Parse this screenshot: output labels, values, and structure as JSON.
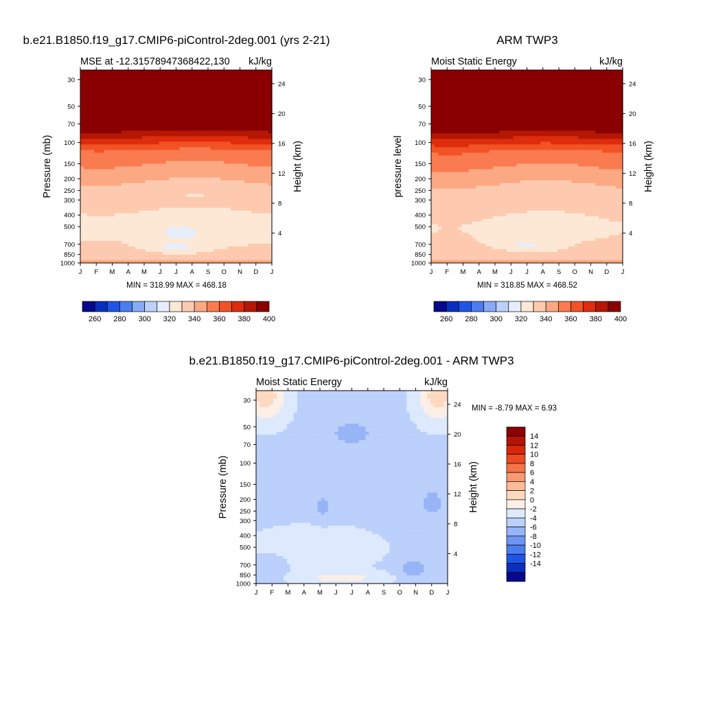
{
  "palette": {
    "absolute": [
      "#08088c",
      "#0a2fbe",
      "#1f55e6",
      "#4b7cf0",
      "#88aaf5",
      "#bbd0fa",
      "#e6eefc",
      "#fde8d6",
      "#fdcab0",
      "#fca882",
      "#fa7b50",
      "#f25325",
      "#de2c0c",
      "#b41704",
      "#8a0000"
    ],
    "difference": [
      "#08088c",
      "#0a2fbe",
      "#1f55e6",
      "#4b7cf0",
      "#6e95f2",
      "#96b4f6",
      "#bbd0fa",
      "#dde9fc",
      "#fbefe6",
      "#fdd9bf",
      "#fcbc98",
      "#fa9870",
      "#f67249",
      "#ec4b22",
      "#d9260a",
      "#b41404",
      "#8c0000"
    ]
  },
  "chart_data": [
    {
      "type": "heatmap",
      "title": "b.e21.B1850.f19_g17.CMIP6-piControl-2deg.001 (yrs 2-21)",
      "left_subtitle": "MSE at -12.31578947368422,130",
      "right_subtitle": "kJ/kg",
      "ylabel": "Pressure (mb)",
      "ylabel_right": "Height (km)",
      "stats": "MIN = 318.99 MAX = 468.18",
      "x_ticks": [
        "J",
        "F",
        "M",
        "A",
        "M",
        "J",
        "J",
        "A",
        "S",
        "O",
        "N",
        "D",
        "J"
      ],
      "y_ticks": [
        30,
        50,
        70,
        100,
        150,
        200,
        250,
        300,
        400,
        500,
        700,
        850,
        1000
      ],
      "y_right_ticks": [
        4,
        8,
        12,
        16,
        20,
        24
      ],
      "colorbar_levels": [
        260,
        270,
        280,
        290,
        300,
        310,
        320,
        330,
        340,
        350,
        360,
        370,
        380,
        390,
        400
      ],
      "colorbar_labels": [
        "260",
        "280",
        "300",
        "320",
        "340",
        "360",
        "380",
        "400"
      ],
      "y_scale": "log",
      "ylim": [
        1000,
        25
      ]
    },
    {
      "type": "heatmap",
      "title": "ARM TWP3",
      "left_subtitle": "Moist Static Energy",
      "right_subtitle": "kJ/kg",
      "ylabel": "pressure level",
      "ylabel_right": "Height (km)",
      "stats": "MIN = 318.85 MAX = 468.52",
      "x_ticks": [
        "J",
        "F",
        "M",
        "A",
        "M",
        "J",
        "J",
        "A",
        "S",
        "O",
        "N",
        "D",
        "J"
      ],
      "y_ticks": [
        30,
        50,
        70,
        100,
        150,
        200,
        250,
        300,
        400,
        500,
        700,
        850,
        1000
      ],
      "y_right_ticks": [
        4,
        8,
        12,
        16,
        20,
        24
      ],
      "colorbar_levels": [
        260,
        270,
        280,
        290,
        300,
        310,
        320,
        330,
        340,
        350,
        360,
        370,
        380,
        390,
        400
      ],
      "colorbar_labels": [
        "260",
        "280",
        "300",
        "320",
        "340",
        "360",
        "380",
        "400"
      ],
      "y_scale": "log",
      "ylim": [
        1000,
        25
      ]
    },
    {
      "type": "heatmap",
      "title": "b.e21.B1850.f19_g17.CMIP6-piControl-2deg.001 - ARM TWP3",
      "left_subtitle": "Moist Static Energy",
      "right_subtitle": "kJ/kg",
      "ylabel": "Pressure (mb)",
      "ylabel_right": "Height (km)",
      "stats": "MIN =  -8.79 MAX =   6.93",
      "x_ticks": [
        "J",
        "F",
        "M",
        "A",
        "M",
        "J",
        "J",
        "A",
        "S",
        "O",
        "N",
        "D",
        "J"
      ],
      "y_ticks": [
        30,
        50,
        70,
        100,
        150,
        200,
        250,
        300,
        400,
        500,
        700,
        850,
        1000
      ],
      "y_right_ticks": [
        4,
        8,
        12,
        16,
        20,
        24
      ],
      "colorbar_labels": [
        "14",
        "12",
        "10",
        "8",
        "6",
        "4",
        "2",
        "0",
        "-2",
        "-4",
        "-6",
        "-8",
        "-10",
        "-12",
        "-14"
      ],
      "y_scale": "log",
      "ylim": [
        1000,
        25
      ]
    }
  ]
}
